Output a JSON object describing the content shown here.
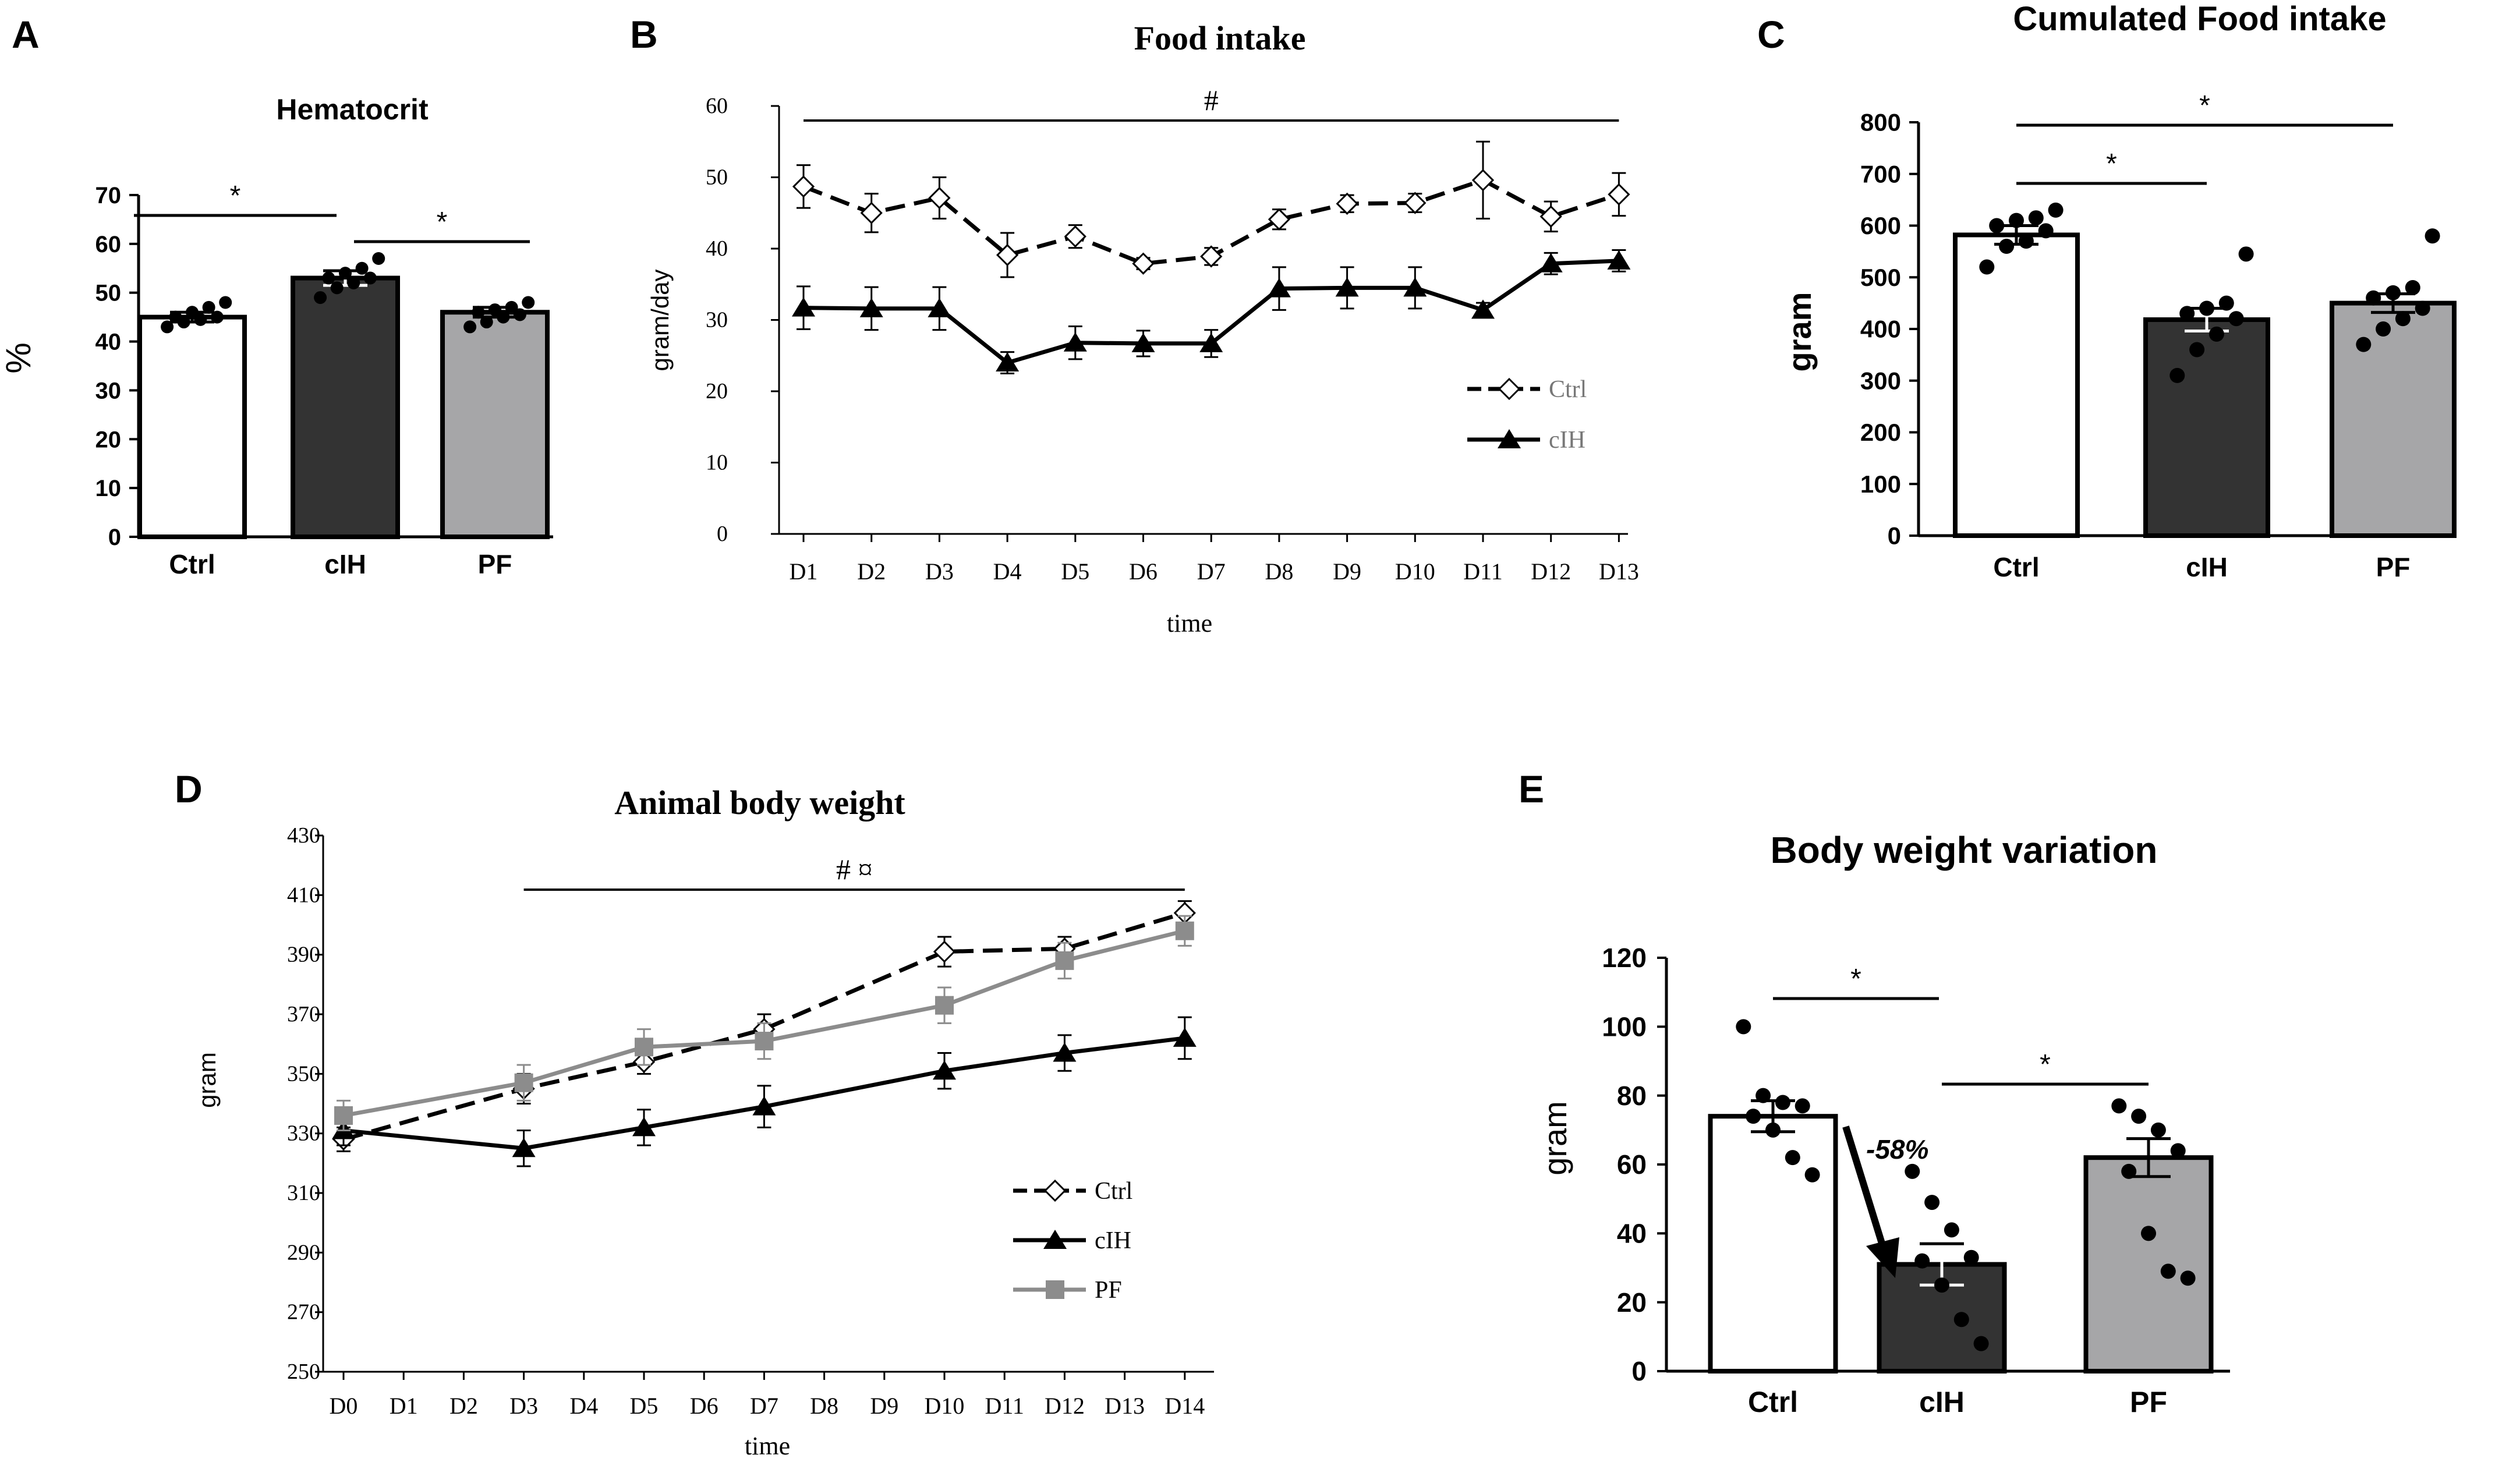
{
  "colors": {
    "black": "#000000",
    "dark_bar": "#333333",
    "light_bar": "#a6a6a8",
    "gray_line": "#8c8c8c",
    "white": "#ffffff"
  },
  "chart_data": [
    {
      "id": "A",
      "panel_label": "A",
      "type": "bar",
      "title": "Hematocrit",
      "ylabel": "%",
      "xlabel": "",
      "categories": [
        "Ctrl",
        "cIH",
        "PF"
      ],
      "values": [
        45,
        53,
        46
      ],
      "errors": [
        1,
        1.5,
        1
      ],
      "ylim": [
        0,
        70
      ],
      "yticks": [
        "0",
        "10",
        "20",
        "30",
        "40",
        "50",
        "60",
        "70"
      ],
      "points": [
        [
          43,
          44,
          44.5,
          45,
          45,
          46,
          47,
          48
        ],
        [
          49,
          51,
          52,
          53,
          53,
          54,
          55,
          57
        ],
        [
          43,
          44,
          45,
          45.5,
          46,
          46.5,
          47,
          48
        ]
      ],
      "bar_colors": [
        "#ffffff",
        "#333333",
        "#a6a6a8"
      ],
      "annotations": [
        {
          "text": "*",
          "from": 0,
          "to": 1
        },
        {
          "text": "*",
          "from": 1,
          "to": 2
        }
      ]
    },
    {
      "id": "B",
      "panel_label": "B",
      "type": "line",
      "title": "Food intake",
      "xlabel": "time",
      "ylabel": "gram/day",
      "categories": [
        "D1",
        "D2",
        "D3",
        "D4",
        "D5",
        "D6",
        "D7",
        "D8",
        "D9",
        "D10",
        "D11",
        "D12",
        "D13"
      ],
      "ylim": [
        0,
        60
      ],
      "yticks": [
        "0",
        "10",
        "20",
        "30",
        "40",
        "50",
        "60"
      ],
      "series": [
        {
          "name": "Ctrl",
          "marker": "diamond",
          "dashed": true,
          "color": "#000000",
          "values": [
            48.7,
            45,
            47.1,
            39.1,
            41.7,
            37.9,
            38.9,
            44.1,
            46.3,
            46.4,
            49.6,
            44.5,
            47.6
          ],
          "errors": [
            3,
            2.7,
            2.9,
            3.1,
            1.6,
            0.8,
            1.2,
            1.4,
            1.2,
            1.3,
            5.4,
            2.1,
            3
          ]
        },
        {
          "name": "cIH",
          "marker": "triangle",
          "dashed": false,
          "color": "#000000",
          "values": [
            31.7,
            31.6,
            31.6,
            24,
            26.8,
            26.7,
            26.7,
            34.4,
            34.5,
            34.5,
            31.4,
            37.9,
            38.3
          ],
          "errors": [
            3,
            3,
            3,
            1.5,
            2.3,
            1.8,
            1.9,
            3,
            2.9,
            2.9,
            1,
            1.5,
            1.5
          ]
        }
      ],
      "annotations": [
        {
          "text": "#",
          "from": 0,
          "to": 12
        }
      ]
    },
    {
      "id": "C",
      "panel_label": "C",
      "type": "bar",
      "title": "Cumulated Food intake",
      "ylabel": "gram",
      "xlabel": "",
      "categories": [
        "Ctrl",
        "cIH",
        "PF"
      ],
      "values": [
        582,
        418,
        450
      ],
      "errors": [
        18,
        22,
        18
      ],
      "ylim": [
        0,
        800
      ],
      "yticks": [
        "0",
        "100",
        "200",
        "300",
        "400",
        "500",
        "600",
        "700",
        "800"
      ],
      "points": [
        [
          520,
          560,
          570,
          590,
          600,
          610,
          615,
          630
        ],
        [
          310,
          360,
          390,
          420,
          430,
          440,
          450,
          545
        ],
        [
          370,
          400,
          420,
          440,
          460,
          470,
          480,
          580
        ]
      ],
      "bar_colors": [
        "#ffffff",
        "#333333",
        "#a6a6a8"
      ],
      "annotations": [
        {
          "text": "*",
          "from": 0,
          "to": 1
        },
        {
          "text": "*",
          "from": 0,
          "to": 2
        }
      ]
    },
    {
      "id": "D",
      "panel_label": "D",
      "type": "line",
      "title": "Animal body weight",
      "xlabel": "time",
      "ylabel": "gram",
      "categories": [
        "D0",
        "D1",
        "D2",
        "D3",
        "D4",
        "D5",
        "D6",
        "D7",
        "D8",
        "D9",
        "D10",
        "D11",
        "D12",
        "D13",
        "D14"
      ],
      "ylim": [
        250,
        430
      ],
      "yticks": [
        "250",
        "270",
        "290",
        "310",
        "330",
        "350",
        "370",
        "390",
        "410",
        "430"
      ],
      "series": [
        {
          "name": "Ctrl",
          "marker": "diamond",
          "dashed": true,
          "color": "#000000",
          "x": [
            0,
            3,
            5,
            7,
            10,
            12,
            14
          ],
          "values": [
            328,
            345,
            354,
            365,
            391,
            392,
            404
          ],
          "errors": [
            4,
            5,
            4,
            5,
            5,
            4,
            4
          ]
        },
        {
          "name": "cIH",
          "marker": "triangle",
          "dashed": false,
          "color": "#000000",
          "x": [
            0,
            3,
            5,
            7,
            10,
            12,
            14
          ],
          "values": [
            331,
            325,
            332,
            339,
            351,
            357,
            362
          ],
          "errors": [
            5,
            6,
            6,
            7,
            6,
            6,
            7
          ]
        },
        {
          "name": "PF",
          "marker": "square",
          "dashed": false,
          "color": "#8c8c8c",
          "x": [
            0,
            3,
            5,
            7,
            10,
            12,
            14
          ],
          "values": [
            336,
            347,
            359,
            361,
            373,
            388,
            398
          ],
          "errors": [
            5,
            6,
            6,
            6,
            6,
            6,
            5
          ]
        }
      ],
      "annotations": [
        {
          "text": "# ¤",
          "from": 3,
          "to": 14
        }
      ]
    },
    {
      "id": "E",
      "panel_label": "E",
      "type": "bar",
      "title": "Body weight variation",
      "ylabel": "gram",
      "xlabel": "",
      "categories": [
        "Ctrl",
        "cIH",
        "PF"
      ],
      "values": [
        74,
        31,
        62
      ],
      "errors": [
        4.5,
        6,
        5.5
      ],
      "ylim": [
        0,
        120
      ],
      "yticks": [
        "0",
        "20",
        "40",
        "60",
        "80",
        "100",
        "120"
      ],
      "points": [
        [
          100,
          80,
          78,
          77,
          74,
          70,
          62,
          57
        ],
        [
          58,
          49,
          41,
          33,
          32,
          25,
          15,
          8
        ],
        [
          77,
          74,
          70,
          64,
          58,
          40,
          29,
          27
        ]
      ],
      "bar_colors": [
        "#ffffff",
        "#333333",
        "#a6a6a8"
      ],
      "annotations": [
        {
          "text": "*",
          "from": 0,
          "to": 1
        },
        {
          "text": "*",
          "from": 1,
          "to": 2
        }
      ],
      "arrow_label": "-58%"
    }
  ]
}
